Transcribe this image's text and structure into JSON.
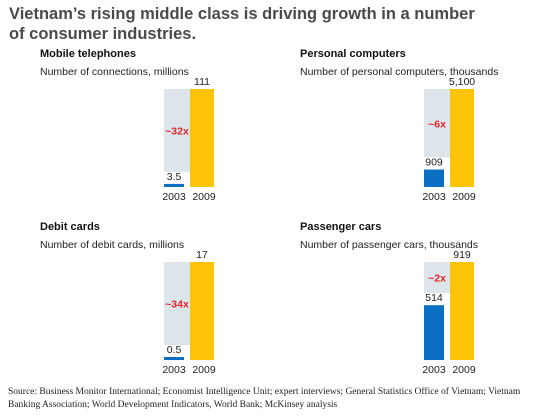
{
  "title": "Vietnam’s rising middle class is driving growth in a number of consumer industries.",
  "source": "Source: Business Monitor International; Economist Intelligence Unit; expert interviews; General Statistics Office of Vietnam; Vietnam Banking Association; World Development Indicators, World Bank; McKinsey analysis",
  "colors": {
    "bar_2003": "#0a6fc2",
    "bar_2009": "#fdc308",
    "growth_band": "#dde5ea",
    "multiplier": "#e0242c"
  },
  "chart_data": [
    {
      "type": "bar",
      "title": "Mobile telephones",
      "subtitle": "Number of connections, millions",
      "categories": [
        "2003",
        "2009"
      ],
      "values": [
        3.5,
        111
      ],
      "value_labels": [
        "3.5",
        "111"
      ],
      "multiplier": "~32x"
    },
    {
      "type": "bar",
      "title": "Personal computers",
      "subtitle": "Number of personal computers, thousands",
      "categories": [
        "2003",
        "2009"
      ],
      "values": [
        909,
        5100
      ],
      "value_labels": [
        "909",
        "5,100"
      ],
      "multiplier": "~6x"
    },
    {
      "type": "bar",
      "title": "Debit cards",
      "subtitle": "Number of debit cards, millions",
      "categories": [
        "2003",
        "2009"
      ],
      "values": [
        0.5,
        17
      ],
      "value_labels": [
        "0.5",
        "17"
      ],
      "multiplier": "~34x"
    },
    {
      "type": "bar",
      "title": "Passenger cars",
      "subtitle": "Number of passenger cars, thousands",
      "categories": [
        "2003",
        "2009"
      ],
      "values": [
        514,
        919
      ],
      "value_labels": [
        "514",
        "919"
      ],
      "multiplier": "~2x"
    }
  ]
}
